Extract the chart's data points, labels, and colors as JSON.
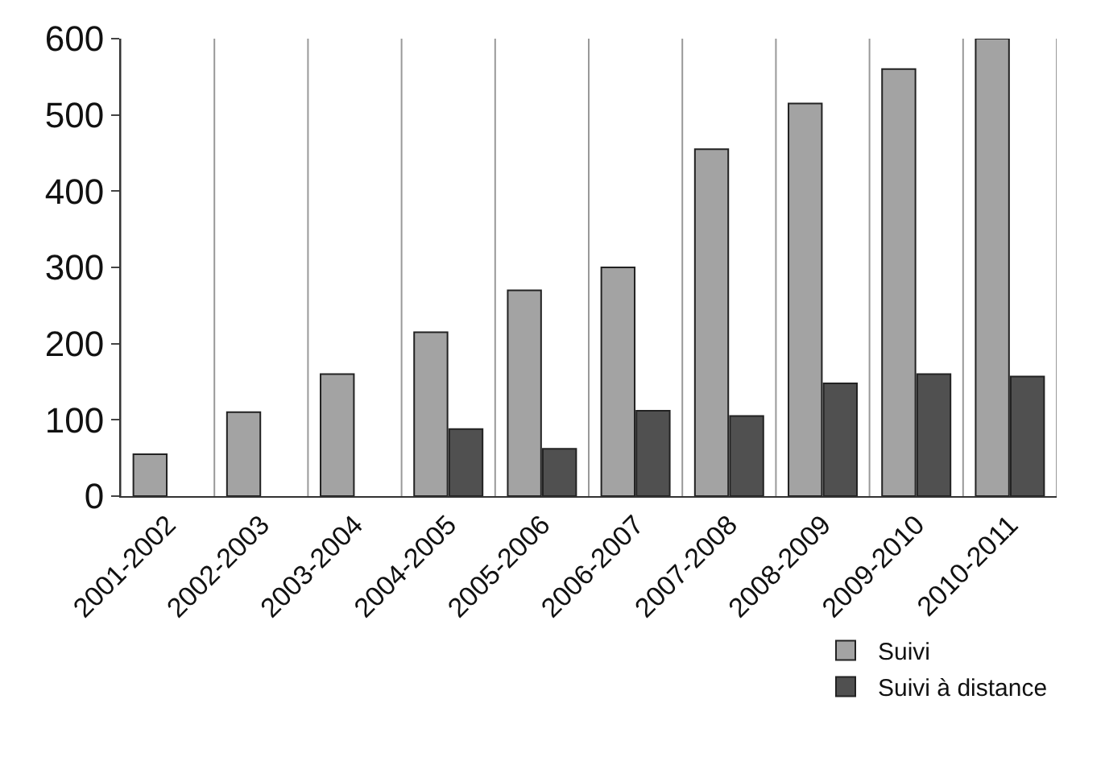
{
  "chart_data": {
    "type": "bar",
    "categories": [
      "2001-2002",
      "2002-2003",
      "2003-2004",
      "2004-2005",
      "2005-2006",
      "2006-2007",
      "2007-2008",
      "2008-2009",
      "2009-2010",
      "2010-2011"
    ],
    "series": [
      {
        "name": "Suivi",
        "color": "#a3a3a3",
        "values": [
          55,
          110,
          160,
          215,
          270,
          300,
          455,
          515,
          560,
          600
        ]
      },
      {
        "name": "Suivi à distance",
        "color": "#505050",
        "values": [
          null,
          null,
          null,
          88,
          62,
          112,
          105,
          148,
          160,
          157
        ]
      }
    ],
    "ylim": [
      0,
      600
    ],
    "yticks": [
      0,
      100,
      200,
      300,
      400,
      500,
      600
    ],
    "grid": "x",
    "legend": "bottom right"
  }
}
